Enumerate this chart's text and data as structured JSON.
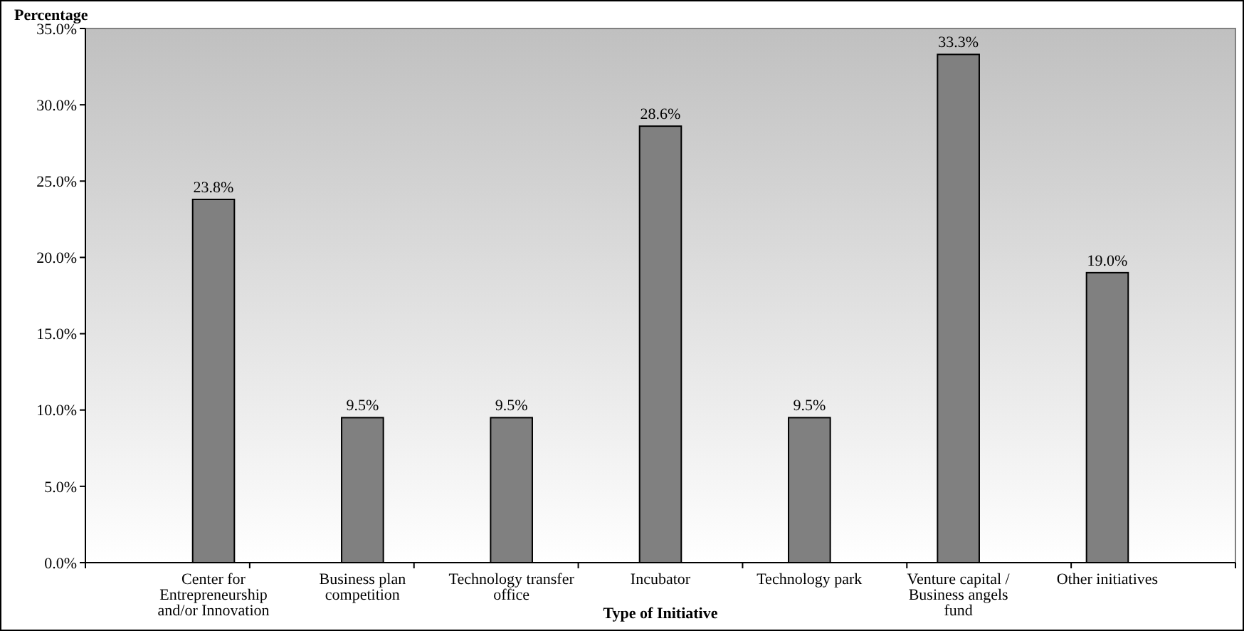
{
  "chart_data": {
    "type": "bar",
    "xlabel": "Type of Initiative",
    "ylabel": "Percentage",
    "categories": [
      "Center for Entrepreneurship and/or Innovation",
      "Business plan competition",
      "Technology transfer office",
      "Incubator",
      "Technology park",
      "Venture capital / Business angels fund",
      "Other initiatives"
    ],
    "values": [
      23.8,
      9.5,
      9.5,
      28.6,
      9.5,
      33.3,
      19.0
    ],
    "value_labels": [
      "23.8%",
      "9.5%",
      "9.5%",
      "28.6%",
      "9.5%",
      "33.3%",
      "19.0%"
    ],
    "color": "#808080",
    "ylim": [
      0,
      35
    ],
    "yticks": [
      {
        "value": 0,
        "label": "0.0%"
      },
      {
        "value": 5,
        "label": "5.0%"
      },
      {
        "value": 10,
        "label": "10.0%"
      },
      {
        "value": 15,
        "label": "15.0%"
      },
      {
        "value": 20,
        "label": "20.0%"
      },
      {
        "value": 25,
        "label": "25.0%"
      },
      {
        "value": 30,
        "label": "30.0%"
      },
      {
        "value": 35,
        "label": "35.0%"
      }
    ],
    "grid": false
  }
}
